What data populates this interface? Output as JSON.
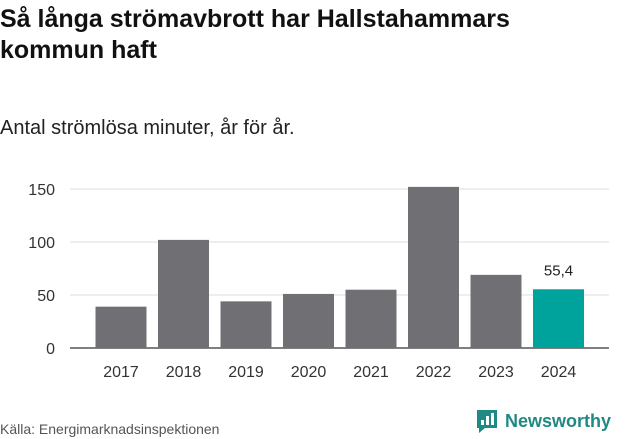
{
  "title": "Så långa strömavbrott har Hallstahammars kommun haft",
  "subtitle": "Antal strömlösa minuter, år för år.",
  "source": "Källa: Energimarknadsinspektionen",
  "brand": "Newsworthy",
  "colors": {
    "bar": "#706f73",
    "highlight": "#00a39b",
    "grid": "#dcdcdc",
    "brand": "#1f8a83"
  },
  "chart_data": {
    "type": "bar",
    "title": "Så långa strömavbrott har Hallstahammars kommun haft",
    "subtitle": "Antal strömlösa minuter, år för år.",
    "xlabel": "",
    "ylabel": "",
    "ylim": [
      0,
      150
    ],
    "yticks": [
      0,
      50,
      100,
      150
    ],
    "grid": true,
    "categories": [
      "2017",
      "2018",
      "2019",
      "2020",
      "2021",
      "2022",
      "2023",
      "2024"
    ],
    "values": [
      39,
      102,
      44,
      51,
      55,
      152,
      69,
      55.4
    ],
    "highlight_index": 7,
    "data_labels": [
      {
        "index": 7,
        "text": "55,4"
      }
    ]
  }
}
